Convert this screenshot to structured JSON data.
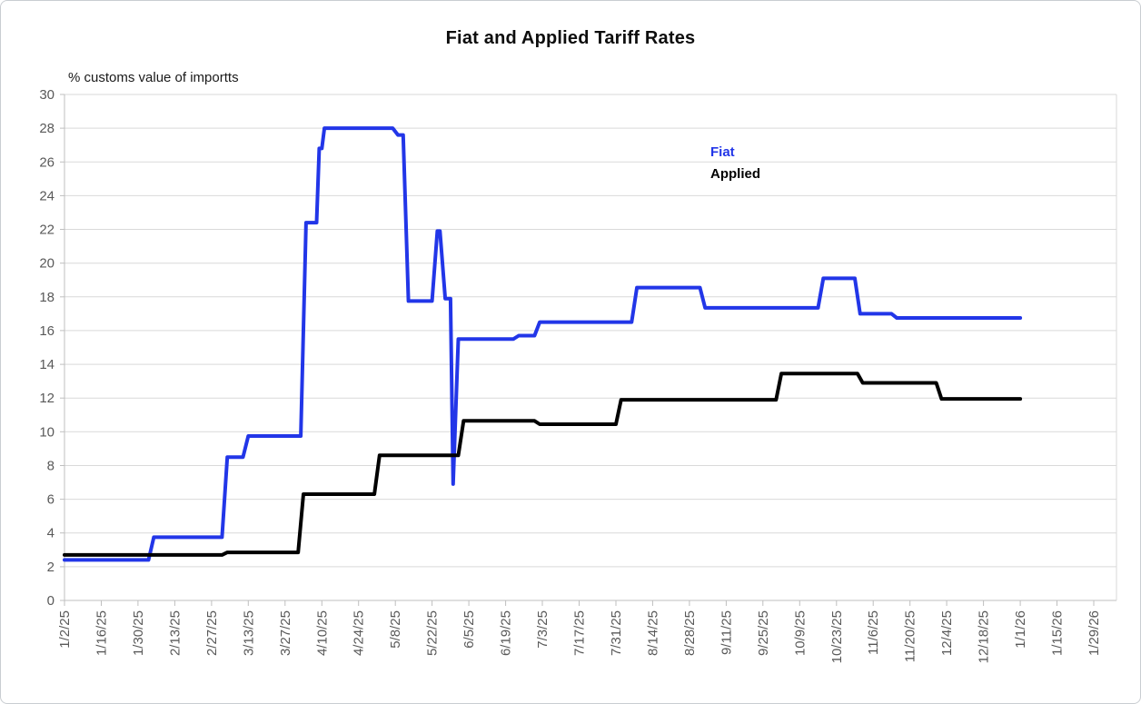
{
  "chart_data": {
    "type": "line",
    "title": "Fiat and Applied Tariff Rates",
    "y_axis_note": "% customs value of importts",
    "xlabel": "",
    "ylabel": "",
    "ylim": [
      0,
      30
    ],
    "y_tick_step": 2,
    "y_tick_labels": [
      "0",
      "2",
      "4",
      "6",
      "8",
      "10",
      "12",
      "14",
      "16",
      "18",
      "20",
      "22",
      "24",
      "26",
      "28",
      "30"
    ],
    "x_tick_labels": [
      "1/2/25",
      "1/16/25",
      "1/30/25",
      "2/13/25",
      "2/27/25",
      "3/13/25",
      "3/27/25",
      "4/10/25",
      "4/24/25",
      "5/8/25",
      "5/22/25",
      "6/5/25",
      "6/19/25",
      "7/3/25",
      "7/17/25",
      "7/31/25",
      "8/14/25",
      "8/28/25",
      "9/11/25",
      "9/25/25",
      "10/9/25",
      "10/23/25",
      "11/6/25",
      "11/20/25",
      "12/4/25",
      "12/18/25",
      "1/1/26",
      "1/15/26",
      "1/29/26"
    ],
    "grid": "horizontal",
    "legend": {
      "position": "inside-upper-middle",
      "entries": [
        {
          "label": "Fiat",
          "color": "#2236e8"
        },
        {
          "label": "Applied",
          "color": "#000000"
        }
      ]
    },
    "series": [
      {
        "name": "Fiat",
        "color": "#2236e8",
        "points": [
          [
            "1/2/25",
            2.4
          ],
          [
            "2/3/25",
            2.4
          ],
          [
            "2/5/25",
            3.75
          ],
          [
            "3/3/25",
            3.75
          ],
          [
            "3/5/25",
            8.5
          ],
          [
            "3/11/25",
            8.5
          ],
          [
            "3/13/25",
            9.75
          ],
          [
            "4/2/25",
            9.75
          ],
          [
            "4/4/25",
            22.4
          ],
          [
            "4/8/25",
            22.4
          ],
          [
            "4/9/25",
            26.8
          ],
          [
            "4/10/25",
            26.8
          ],
          [
            "4/11/25",
            28
          ],
          [
            "5/7/25",
            28
          ],
          [
            "5/9/25",
            27.6
          ],
          [
            "5/11/25",
            27.6
          ],
          [
            "5/13/25",
            17.75
          ],
          [
            "5/22/25",
            17.75
          ],
          [
            "5/24/25",
            21.9
          ],
          [
            "5/25/25",
            21.9
          ],
          [
            "5/27/25",
            17.9
          ],
          [
            "5/29/25",
            17.9
          ],
          [
            "5/30/25",
            6.9
          ],
          [
            "6/1/25",
            15.5
          ],
          [
            "6/22/25",
            15.5
          ],
          [
            "6/24/25",
            15.7
          ],
          [
            "6/30/25",
            15.7
          ],
          [
            "7/2/25",
            16.5
          ],
          [
            "8/6/25",
            16.5
          ],
          [
            "8/8/25",
            18.55
          ],
          [
            "9/1/25",
            18.55
          ],
          [
            "9/3/25",
            17.35
          ],
          [
            "10/16/25",
            17.35
          ],
          [
            "10/18/25",
            19.1
          ],
          [
            "10/30/25",
            19.1
          ],
          [
            "11/1/25",
            17.0
          ],
          [
            "11/13/25",
            17.0
          ],
          [
            "11/15/25",
            16.75
          ],
          [
            "1/1/26",
            16.75
          ]
        ]
      },
      {
        "name": "Applied",
        "color": "#000000",
        "points": [
          [
            "1/2/25",
            2.7
          ],
          [
            "3/3/25",
            2.7
          ],
          [
            "3/5/25",
            2.85
          ],
          [
            "4/1/25",
            2.85
          ],
          [
            "4/3/25",
            6.3
          ],
          [
            "4/30/25",
            6.3
          ],
          [
            "5/2/25",
            8.6
          ],
          [
            "6/1/25",
            8.6
          ],
          [
            "6/3/25",
            10.65
          ],
          [
            "6/30/25",
            10.65
          ],
          [
            "7/2/25",
            10.45
          ],
          [
            "7/31/25",
            10.45
          ],
          [
            "8/2/25",
            11.9
          ],
          [
            "9/30/25",
            11.9
          ],
          [
            "10/2/25",
            13.45
          ],
          [
            "10/31/25",
            13.45
          ],
          [
            "11/2/25",
            12.9
          ],
          [
            "11/30/25",
            12.9
          ],
          [
            "12/2/25",
            11.95
          ],
          [
            "1/1/26",
            11.95
          ]
        ]
      }
    ],
    "colors": {
      "gridline": "#d9d9d9",
      "axis": "#bfbfbf",
      "tick_label": "#595959",
      "title": "#0d0d0d",
      "background": "#ffffff"
    }
  }
}
